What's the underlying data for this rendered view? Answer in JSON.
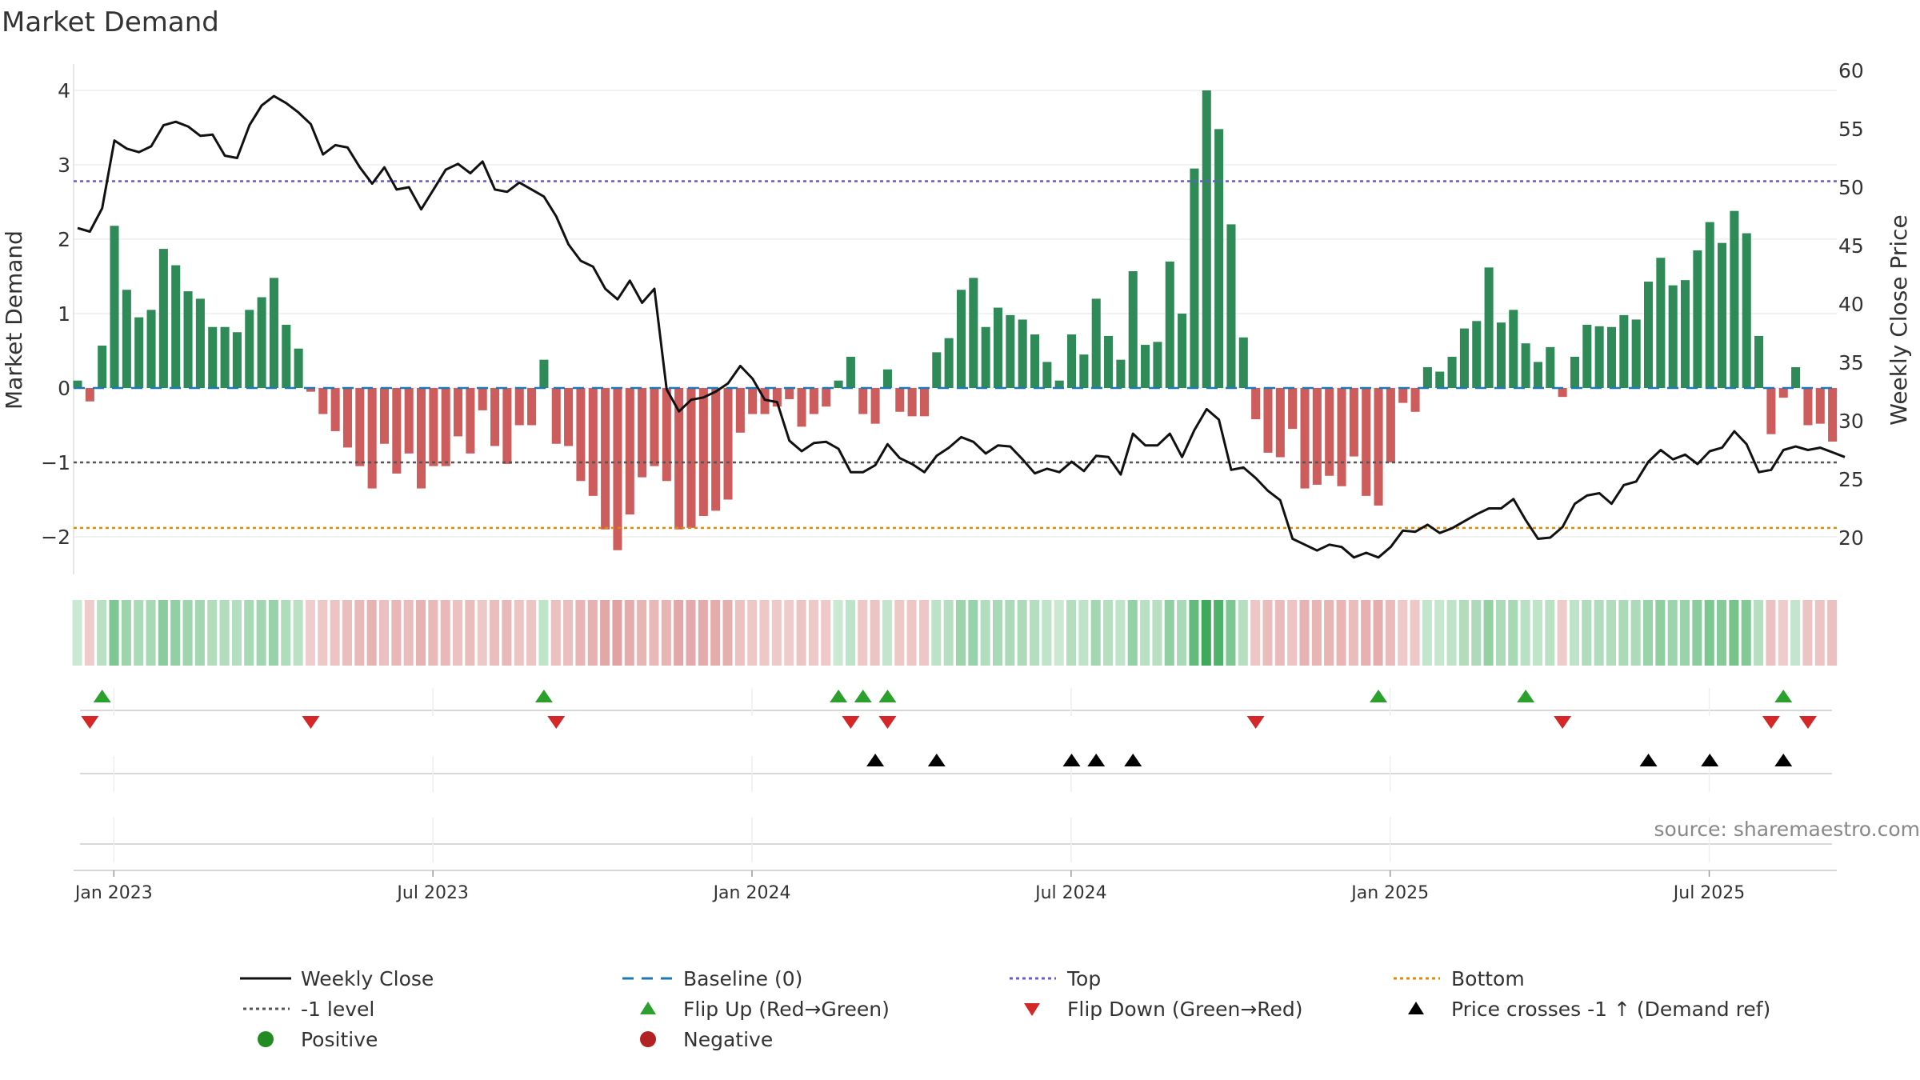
{
  "chart_data": {
    "title": "Market Demand",
    "source": "source: sharemaestro.com",
    "type": "bar+line",
    "left_axis": {
      "label": "Market Demand",
      "ylim": [
        -2.5,
        4.2
      ],
      "ticks": [
        4,
        3,
        2,
        1,
        0,
        -1,
        -2
      ],
      "tick_labels": [
        "4",
        "3",
        "2",
        "1",
        "0",
        "−1",
        "−2"
      ]
    },
    "right_axis": {
      "label": "Weekly Close Price",
      "ylim": [
        16,
        61
      ],
      "ticks": [
        60,
        55,
        50,
        45,
        40,
        35,
        30,
        25,
        20
      ],
      "tick_labels": [
        "60",
        "55",
        "50",
        "45",
        "40",
        "35",
        "30",
        "25",
        "20"
      ]
    },
    "x_axis": {
      "start_date": "2022-12-26",
      "tick_labels": [
        "Jan 2023",
        "Jul 2023",
        "Jan 2024",
        "Jul 2024",
        "Jan 2025",
        "Jul 2025"
      ],
      "tick_weeks": [
        1,
        27,
        53,
        79,
        105,
        131
      ]
    },
    "reference_lines": {
      "top": 2.78,
      "bottom": -1.88,
      "minus_one": -1.0,
      "baseline": 0
    },
    "demand": [
      0.1,
      -0.18,
      0.57,
      2.18,
      1.32,
      0.95,
      1.05,
      1.87,
      1.65,
      1.3,
      1.2,
      0.82,
      0.82,
      0.75,
      1.05,
      1.22,
      1.48,
      0.85,
      0.53,
      -0.05,
      -0.35,
      -0.58,
      -0.8,
      -1.05,
      -1.35,
      -0.75,
      -1.15,
      -0.88,
      -1.35,
      -1.05,
      -1.05,
      -0.65,
      -0.88,
      -0.3,
      -0.78,
      -1.02,
      -0.5,
      -0.5,
      0.38,
      -0.75,
      -0.78,
      -1.25,
      -1.45,
      -1.9,
      -2.18,
      -1.7,
      -1.2,
      -1.05,
      -1.25,
      -1.9,
      -1.88,
      -1.72,
      -1.65,
      -1.5,
      -0.6,
      -0.35,
      -0.35,
      -0.25,
      -0.15,
      -0.52,
      -0.35,
      -0.25,
      0.1,
      0.42,
      -0.35,
      -0.48,
      0.25,
      -0.32,
      -0.38,
      -0.38,
      0.48,
      0.67,
      1.32,
      1.48,
      0.82,
      1.08,
      0.98,
      0.92,
      0.72,
      0.35,
      0.1,
      0.72,
      0.45,
      1.2,
      0.7,
      0.38,
      1.57,
      0.58,
      0.62,
      1.7,
      1.0,
      2.95,
      4.0,
      3.48,
      2.2,
      0.68,
      -0.42,
      -0.87,
      -0.93,
      -0.55,
      -1.35,
      -1.3,
      -1.18,
      -1.32,
      -0.92,
      -1.45,
      -1.58,
      -1.0,
      -0.2,
      -0.32,
      0.28,
      0.22,
      0.42,
      0.8,
      0.9,
      1.62,
      0.88,
      1.05,
      0.6,
      0.35,
      0.55,
      -0.12,
      0.42,
      0.85,
      0.83,
      0.82,
      0.98,
      0.92,
      1.43,
      1.75,
      1.38,
      1.45,
      1.85,
      2.23,
      1.95,
      2.38,
      2.08,
      0.7,
      -0.62,
      -0.13,
      0.28,
      -0.5,
      -0.48,
      -0.72
    ],
    "weekly_close": [
      46.5,
      46.2,
      48.2,
      54.0,
      53.3,
      53.0,
      53.5,
      55.3,
      55.6,
      55.2,
      54.4,
      54.5,
      52.7,
      52.5,
      55.3,
      57.0,
      57.8,
      57.2,
      56.4,
      55.4,
      52.8,
      53.6,
      53.4,
      51.7,
      50.3,
      51.7,
      49.8,
      50.0,
      48.1,
      49.8,
      51.5,
      52.0,
      51.2,
      52.2,
      49.8,
      49.6,
      50.4,
      49.8,
      49.2,
      47.5,
      45.1,
      43.7,
      43.2,
      41.3,
      40.4,
      42.0,
      40.1,
      41.3,
      32.7,
      30.8,
      31.8,
      32.0,
      32.5,
      33.2,
      34.7,
      33.6,
      31.8,
      31.6,
      28.3,
      27.4,
      28.1,
      28.2,
      27.6,
      25.6,
      25.6,
      26.2,
      28.0,
      26.8,
      26.3,
      25.6,
      27.0,
      27.7,
      28.6,
      28.2,
      27.2,
      27.9,
      27.8,
      26.7,
      25.5,
      25.9,
      25.6,
      26.5,
      25.7,
      27.0,
      26.9,
      25.4,
      28.9,
      27.9,
      27.9,
      28.9,
      26.9,
      29.2,
      31.0,
      30.1,
      25.8,
      26.0,
      25.1,
      24.0,
      23.2,
      19.9,
      19.4,
      18.9,
      19.4,
      19.2,
      18.3,
      18.7,
      18.3,
      19.2,
      20.6,
      20.5,
      21.1,
      20.4,
      20.8,
      21.4,
      22.0,
      22.5,
      22.5,
      23.3,
      21.5,
      19.9,
      20.0,
      20.9,
      22.9,
      23.6,
      23.8,
      22.9,
      24.5,
      24.8,
      26.5,
      27.5,
      26.7,
      27.1,
      26.3,
      27.4,
      27.7,
      29.1,
      28.0,
      25.6,
      25.8,
      27.5,
      27.8,
      27.5,
      27.7,
      27.3,
      26.9
    ],
    "flip_up_weeks": [
      2,
      38,
      62,
      64,
      66,
      106,
      118,
      139
    ],
    "flip_down_weeks": [
      1,
      19,
      39,
      63,
      66,
      96,
      121,
      138,
      141
    ],
    "price_cross_weeks": [
      65,
      70,
      81,
      83,
      86,
      128,
      133,
      139
    ],
    "legend": [
      {
        "label": "Weekly Close",
        "symbol": "line-black"
      },
      {
        "label": "Baseline (0)",
        "symbol": "dash-blue"
      },
      {
        "label": "Top",
        "symbol": "dot-purple"
      },
      {
        "label": "Bottom",
        "symbol": "dot-orange"
      },
      {
        "label": "-1 level",
        "symbol": "dot-gray"
      },
      {
        "label": "Flip Up (Red→Green)",
        "symbol": "triangle-up-green"
      },
      {
        "label": "Flip Down (Green→Red)",
        "symbol": "triangle-down-red"
      },
      {
        "label": "Price crosses -1 ↑ (Demand ref)",
        "symbol": "triangle-up-black"
      },
      {
        "label": "Positive",
        "symbol": "circle-green"
      },
      {
        "label": "Negative",
        "symbol": "circle-red"
      }
    ],
    "colors": {
      "positive": "#2e8b57",
      "negative": "#cd5c5c",
      "price": "#111111",
      "baseline": "#1f77b4",
      "top": "#6a5acd",
      "bottom": "#e08a00",
      "minus_one": "#555555",
      "flip_up": "#2ca02c",
      "flip_down": "#d62728",
      "cross": "#000000",
      "legend_positive": "#228b22",
      "legend_negative": "#b22222"
    }
  }
}
